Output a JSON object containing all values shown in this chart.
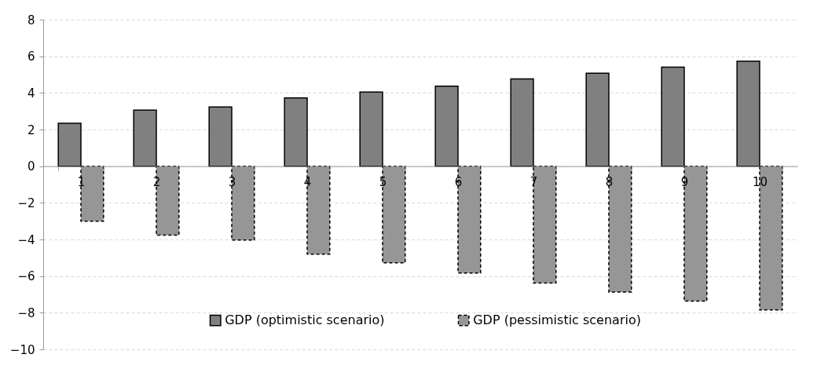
{
  "chart_data": {
    "type": "bar",
    "categories": [
      "1",
      "2",
      "3",
      "4",
      "5",
      "6",
      "7",
      "8",
      "9",
      "10"
    ],
    "series": [
      {
        "name": "GDP (optimistic scenario)",
        "color": "#808080",
        "line_style": "solid",
        "values": [
          2.34,
          3.06,
          3.23,
          3.72,
          4.05,
          4.37,
          4.76,
          5.07,
          5.41,
          5.73
        ]
      },
      {
        "name": "GDP (pessimistic scenario)",
        "color": "#969696",
        "line_style": "dashed",
        "values": [
          -3.0,
          -3.76,
          -4.03,
          -4.8,
          -5.27,
          -5.83,
          -6.38,
          -6.87,
          -7.36,
          -7.85
        ]
      }
    ],
    "ylim": [
      -10,
      8
    ],
    "yticks": [
      -10,
      -8,
      -6,
      -4,
      -2,
      0,
      2,
      4,
      6,
      8
    ],
    "grid": "y",
    "legend": "bottom"
  }
}
